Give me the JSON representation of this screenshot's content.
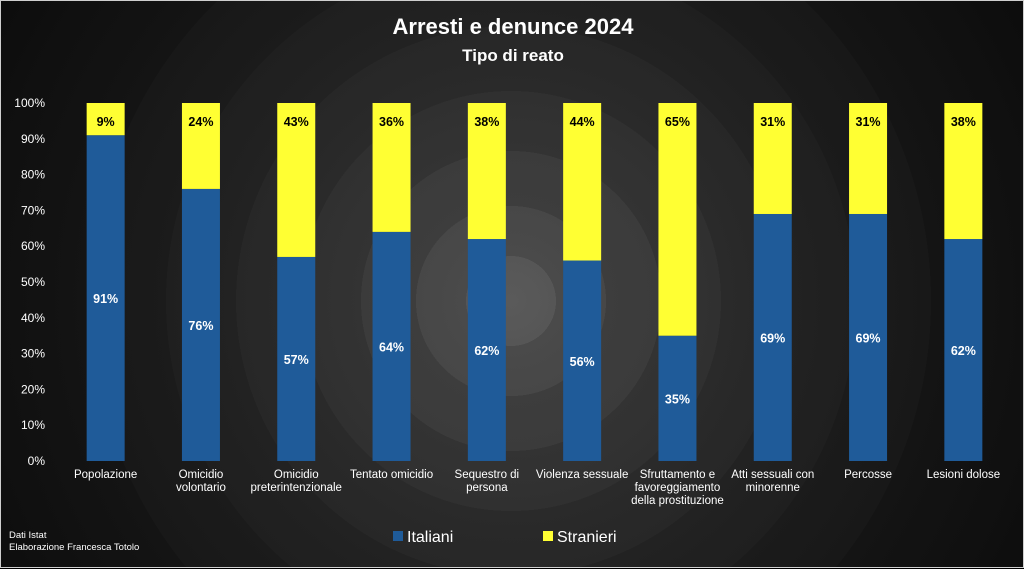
{
  "chart_data": {
    "type": "bar",
    "stacked": true,
    "title": "Arresti e denunce 2024",
    "subtitle": "Tipo di reato",
    "ylim": [
      0,
      100
    ],
    "yticks": [
      "0%",
      "10%",
      "20%",
      "30%",
      "40%",
      "50%",
      "60%",
      "70%",
      "80%",
      "90%",
      "100%"
    ],
    "categories": [
      "Popolazione",
      "Omicidio volontario",
      "Omicidio preterintenzionale",
      "Tentato omicidio",
      "Sequestro di persona",
      "Violenza sessuale",
      "Sfruttamento e favoreggiamento della prostituzione",
      "Atti sessuali con minorenne",
      "Percosse",
      "Lesioni dolose"
    ],
    "category_lines": [
      [
        "Popolazione"
      ],
      [
        "Omicidio",
        "volontario"
      ],
      [
        "Omicidio",
        "preterintenzionale"
      ],
      [
        "Tentato omicidio"
      ],
      [
        "Sequestro di",
        "persona"
      ],
      [
        "Violenza sessuale"
      ],
      [
        "Sfruttamento e",
        "favoreggiamento",
        "della prostituzione"
      ],
      [
        "Atti sessuali con",
        "minorenne"
      ],
      [
        "Percosse"
      ],
      [
        "Lesioni dolose"
      ]
    ],
    "series": [
      {
        "name": "Italiani",
        "color": "#1f5b99",
        "label_color": "#ffffff",
        "values": [
          91,
          76,
          57,
          64,
          62,
          56,
          35,
          69,
          69,
          62
        ],
        "labels": [
          "91%",
          "76%",
          "57%",
          "64%",
          "62%",
          "56%",
          "35%",
          "69%",
          "69%",
          "62%"
        ]
      },
      {
        "name": "Stranieri",
        "color": "#ffff33",
        "label_color": "#000000",
        "values": [
          9,
          24,
          43,
          36,
          38,
          44,
          65,
          31,
          31,
          38
        ],
        "labels": [
          "9%",
          "24%",
          "43%",
          "36%",
          "38%",
          "44%",
          "65%",
          "31%",
          "31%",
          "38%"
        ]
      }
    ],
    "legend_position": "bottom-center"
  },
  "footer": {
    "source_line1": "Dati Istat",
    "source_line2": "Elaborazione Francesca Totolo"
  }
}
